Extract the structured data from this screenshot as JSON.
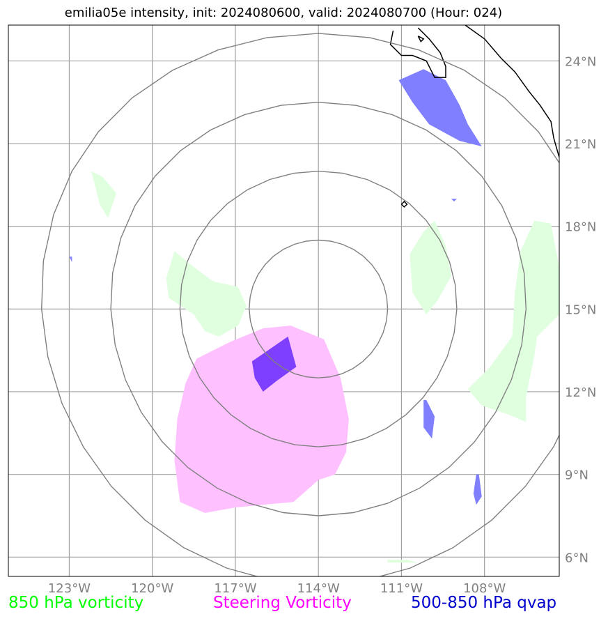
{
  "title": "emilia05e intensity, init: 2024080600, valid: 2024080700 (Hour: 024)",
  "map": {
    "lon_range": [
      -125.2,
      -105.3
    ],
    "lat_range": [
      5.3,
      25.3
    ],
    "lon_ticks": [
      {
        "value": -123,
        "label": "123°W"
      },
      {
        "value": -120,
        "label": "120°W"
      },
      {
        "value": -117,
        "label": "117°W"
      },
      {
        "value": -114,
        "label": "114°W"
      },
      {
        "value": -111,
        "label": "111°W"
      },
      {
        "value": -108,
        "label": "108°W"
      }
    ],
    "lat_ticks": [
      {
        "value": 24,
        "label": "24°N"
      },
      {
        "value": 21,
        "label": "21°N"
      },
      {
        "value": 18,
        "label": "18°N"
      },
      {
        "value": 15,
        "label": "15°N"
      },
      {
        "value": 12,
        "label": "12°N"
      },
      {
        "value": 9,
        "label": "9°N"
      },
      {
        "value": 6,
        "label": "6°N"
      }
    ],
    "gridlines": true,
    "colors": {
      "grid": "#a0a0a0",
      "ring": "#808080",
      "coast": "#000000",
      "vort850": "#dfffdf",
      "steering": "#ffc0ff",
      "qvap": "#7f7fff",
      "overlap": "#7f3fff"
    }
  },
  "range_rings": {
    "center": [
      -114,
      15
    ],
    "radii_deg": [
      2.5,
      5,
      7.5,
      10
    ]
  },
  "fields": {
    "vort850": [
      [
        [
          -122.2,
          20.0
        ],
        [
          -121.9,
          18.8
        ],
        [
          -121.6,
          18.3
        ],
        [
          -121.3,
          19.2
        ],
        [
          -121.8,
          19.8
        ]
      ],
      [
        [
          -119.5,
          16.1
        ],
        [
          -119.2,
          17.1
        ],
        [
          -118.6,
          16.6
        ],
        [
          -117.8,
          16.0
        ],
        [
          -116.9,
          15.8
        ],
        [
          -116.6,
          15.1
        ],
        [
          -116.9,
          14.4
        ],
        [
          -117.6,
          14.0
        ],
        [
          -118.1,
          14.2
        ],
        [
          -118.5,
          14.8
        ],
        [
          -119.4,
          15.4
        ]
      ],
      [
        [
          -110.2,
          17.8
        ],
        [
          -109.8,
          18.2
        ],
        [
          -109.4,
          17.3
        ],
        [
          -109.2,
          16.2
        ],
        [
          -109.7,
          15.3
        ],
        [
          -110.1,
          14.8
        ],
        [
          -110.6,
          15.6
        ],
        [
          -110.7,
          17.0
        ]
      ],
      [
        [
          -106.7,
          17.1
        ],
        [
          -106.2,
          18.2
        ],
        [
          -105.6,
          18.1
        ],
        [
          -105.3,
          16.5
        ],
        [
          -105.3,
          14.8
        ],
        [
          -106.1,
          14.0
        ],
        [
          -106.2,
          13.3
        ],
        [
          -106.5,
          11.8
        ],
        [
          -106.5,
          10.9
        ],
        [
          -107.2,
          11.2
        ],
        [
          -108.1,
          11.5
        ],
        [
          -108.6,
          12.1
        ],
        [
          -107.8,
          12.9
        ],
        [
          -107.0,
          14.0
        ],
        [
          -106.9,
          15.6
        ]
      ],
      [
        [
          -111.5,
          5.9
        ],
        [
          -110.8,
          5.9
        ],
        [
          -110.4,
          5.8
        ],
        [
          -111.5,
          5.8
        ]
      ]
    ],
    "steering": [
      [
        [
          -118.4,
          13.2
        ],
        [
          -117.2,
          13.8
        ],
        [
          -116.0,
          14.3
        ],
        [
          -115.0,
          14.4
        ],
        [
          -113.8,
          13.9
        ],
        [
          -113.2,
          12.5
        ],
        [
          -112.9,
          11.0
        ],
        [
          -113.0,
          9.8
        ],
        [
          -113.4,
          9.0
        ],
        [
          -114.0,
          8.8
        ],
        [
          -114.9,
          8.0
        ],
        [
          -116.0,
          7.9
        ],
        [
          -117.0,
          7.8
        ],
        [
          -118.1,
          7.6
        ],
        [
          -119.0,
          8.0
        ],
        [
          -119.2,
          9.5
        ],
        [
          -119.1,
          11.0
        ],
        [
          -118.8,
          12.3
        ]
      ]
    ],
    "qvap": [
      [
        [
          -111.1,
          23.3
        ],
        [
          -110.2,
          23.7
        ],
        [
          -109.4,
          23.3
        ],
        [
          -108.9,
          22.4
        ],
        [
          -108.6,
          21.7
        ],
        [
          -108.1,
          20.9
        ],
        [
          -108.9,
          21.1
        ],
        [
          -110.0,
          21.7
        ],
        [
          -110.6,
          22.5
        ]
      ],
      [
        [
          -110.1,
          11.7
        ],
        [
          -109.8,
          11.1
        ],
        [
          -109.9,
          10.3
        ],
        [
          -110.2,
          10.7
        ],
        [
          -110.2,
          11.7
        ]
      ],
      [
        [
          -108.2,
          9.0
        ],
        [
          -108.1,
          8.2
        ],
        [
          -108.3,
          7.9
        ],
        [
          -108.4,
          8.3
        ],
        [
          -108.3,
          9.0
        ]
      ],
      [
        [
          -122.9,
          16.9
        ],
        [
          -122.9,
          16.7
        ],
        [
          -123.0,
          16.9
        ]
      ],
      [
        [
          -109.2,
          19.0
        ],
        [
          -109.0,
          19.0
        ],
        [
          -109.1,
          18.9
        ]
      ]
    ],
    "overlap": [
      [
        [
          -116.4,
          13.1
        ],
        [
          -115.1,
          14.0
        ],
        [
          -114.8,
          12.9
        ],
        [
          -115.5,
          12.4
        ],
        [
          -116.0,
          12.0
        ],
        [
          -116.3,
          12.5
        ]
      ]
    ]
  },
  "coastlines": [
    [
      [
        -111.3,
        25.1
      ],
      [
        -111.4,
        24.6
      ],
      [
        -111.0,
        24.2
      ],
      [
        -110.6,
        24.2
      ],
      [
        -110.1,
        24.0
      ],
      [
        -109.8,
        23.4
      ],
      [
        -109.4,
        23.4
      ],
      [
        -109.4,
        23.8
      ],
      [
        -109.6,
        24.3
      ],
      [
        -110.0,
        24.8
      ],
      [
        -110.4,
        25.2
      ]
    ],
    [
      [
        -108.7,
        25.3
      ],
      [
        -108.0,
        24.8
      ],
      [
        -107.4,
        24.1
      ],
      [
        -106.9,
        23.6
      ],
      [
        -106.4,
        22.9
      ],
      [
        -106.0,
        22.4
      ],
      [
        -105.6,
        21.8
      ],
      [
        -105.5,
        21.2
      ],
      [
        -105.3,
        20.5
      ]
    ],
    [
      [
        -111.0,
        18.8
      ],
      [
        -110.9,
        18.7
      ],
      [
        -110.8,
        18.8
      ],
      [
        -110.9,
        18.9
      ],
      [
        -111.0,
        18.8
      ]
    ],
    [
      [
        -110.4,
        24.9
      ],
      [
        -110.3,
        24.7
      ],
      [
        -110.2,
        24.8
      ],
      [
        -110.4,
        24.9
      ]
    ]
  ],
  "legend": {
    "vort850": "850 hPa vorticity",
    "steering": "Steering Vorticity",
    "qvap": "500-850 hPa qvap"
  }
}
